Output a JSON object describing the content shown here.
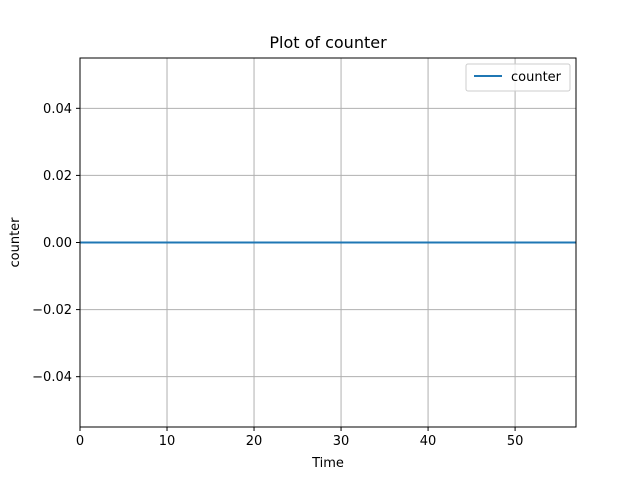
{
  "chart_data": {
    "type": "line",
    "title": "Plot of counter",
    "xlabel": "Time",
    "ylabel": "counter",
    "xlim": [
      0,
      57
    ],
    "ylim": [
      -0.055,
      0.055
    ],
    "x_ticks": [
      0,
      10,
      20,
      30,
      40,
      50
    ],
    "x_tick_labels": [
      "0",
      "10",
      "20",
      "30",
      "40",
      "50"
    ],
    "y_ticks": [
      -0.04,
      -0.02,
      0.0,
      0.02,
      0.04
    ],
    "y_tick_labels": [
      "−0.04",
      "−0.02",
      "0.00",
      "0.02",
      "0.04"
    ],
    "grid": true,
    "legend_position": "top-right",
    "series": [
      {
        "name": "counter",
        "color": "#1f77b4",
        "x": [
          0,
          57
        ],
        "y": [
          0,
          0
        ]
      }
    ]
  }
}
